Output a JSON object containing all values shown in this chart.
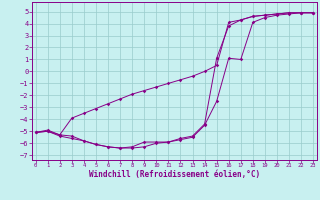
{
  "xlabel": "Windchill (Refroidissement éolien,°C)",
  "bg_color": "#c8f0f0",
  "line_color": "#880088",
  "grid_color": "#99cccc",
  "x_ticks": [
    0,
    1,
    2,
    3,
    4,
    5,
    6,
    7,
    8,
    9,
    10,
    11,
    12,
    13,
    14,
    15,
    16,
    17,
    18,
    19,
    20,
    21,
    22,
    23
  ],
  "y_ticks": [
    -7,
    -6,
    -5,
    -4,
    -3,
    -2,
    -1,
    0,
    1,
    2,
    3,
    4,
    5
  ],
  "xlim": [
    -0.3,
    23.3
  ],
  "ylim": [
    -7.4,
    5.8
  ],
  "curve1_x": [
    0,
    1,
    2,
    3,
    4,
    5,
    6,
    7,
    8,
    9,
    10,
    11,
    12,
    13,
    14,
    15,
    16,
    17,
    18,
    19,
    20,
    21,
    22,
    23
  ],
  "curve1_y": [
    -5.1,
    -4.9,
    -5.3,
    -3.9,
    -3.5,
    -3.1,
    -2.7,
    -2.3,
    -1.9,
    -1.6,
    -1.3,
    -1.0,
    -0.7,
    -0.4,
    0.0,
    0.5,
    4.1,
    4.3,
    4.6,
    4.7,
    4.8,
    4.9,
    4.9,
    4.9
  ],
  "curve2_x": [
    0,
    1,
    2,
    3,
    4,
    5,
    6,
    7,
    8,
    9,
    10,
    11,
    12,
    13,
    14,
    15,
    16,
    17,
    18,
    19,
    20,
    21,
    22,
    23
  ],
  "curve2_y": [
    -5.1,
    -5.0,
    -5.3,
    -5.4,
    -5.8,
    -6.1,
    -6.3,
    -6.4,
    -6.3,
    -5.9,
    -5.9,
    -5.9,
    -5.7,
    -5.5,
    -4.5,
    -2.5,
    1.1,
    1.0,
    4.1,
    4.5,
    4.7,
    4.8,
    4.9,
    4.9
  ],
  "curve3_x": [
    0,
    1,
    2,
    3,
    4,
    5,
    6,
    7,
    8,
    9,
    10,
    11,
    12,
    13,
    14,
    15,
    16,
    17,
    18,
    19,
    20,
    21,
    22,
    23
  ],
  "curve3_y": [
    -5.1,
    -5.0,
    -5.4,
    -5.6,
    -5.8,
    -6.1,
    -6.3,
    -6.4,
    -6.4,
    -6.3,
    -6.0,
    -5.9,
    -5.6,
    -5.4,
    -4.4,
    1.1,
    3.8,
    4.3,
    4.6,
    4.7,
    4.8,
    4.9,
    4.9,
    4.9
  ]
}
